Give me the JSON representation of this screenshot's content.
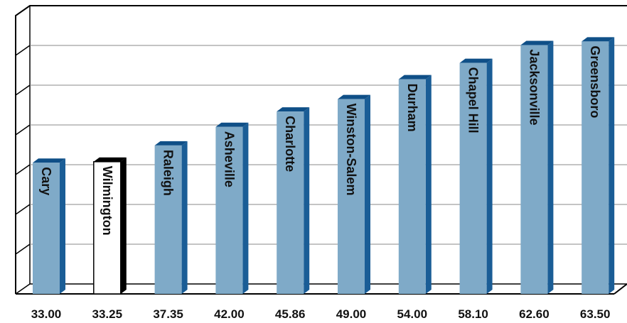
{
  "chart_data": {
    "type": "bar",
    "style": "3d-column",
    "categories": [
      "Cary",
      "Wilmington",
      "Raleigh",
      "Asheville",
      "Charlotte",
      "Winston-Salem",
      "Durham",
      "Chapel Hill",
      "Jacksonville",
      "Greensboro"
    ],
    "values": [
      33.0,
      33.25,
      37.35,
      42.0,
      45.86,
      49.0,
      54.0,
      58.1,
      62.6,
      63.5
    ],
    "value_labels": [
      "33.00",
      "33.25",
      "37.35",
      "42.00",
      "45.86",
      "49.00",
      "54.00",
      "58.10",
      "62.60",
      "63.50"
    ],
    "highlighted_category": "Wilmington",
    "ylim": [
      0,
      70
    ],
    "grid": true,
    "colors": {
      "bar_front": "#7faac8",
      "bar_side": "#1a5d96",
      "bar_top": "#0f4f87",
      "highlight_front": "#ffffff",
      "highlight_side": "#000000",
      "gridline": "#888888",
      "axis": "#000000"
    }
  }
}
